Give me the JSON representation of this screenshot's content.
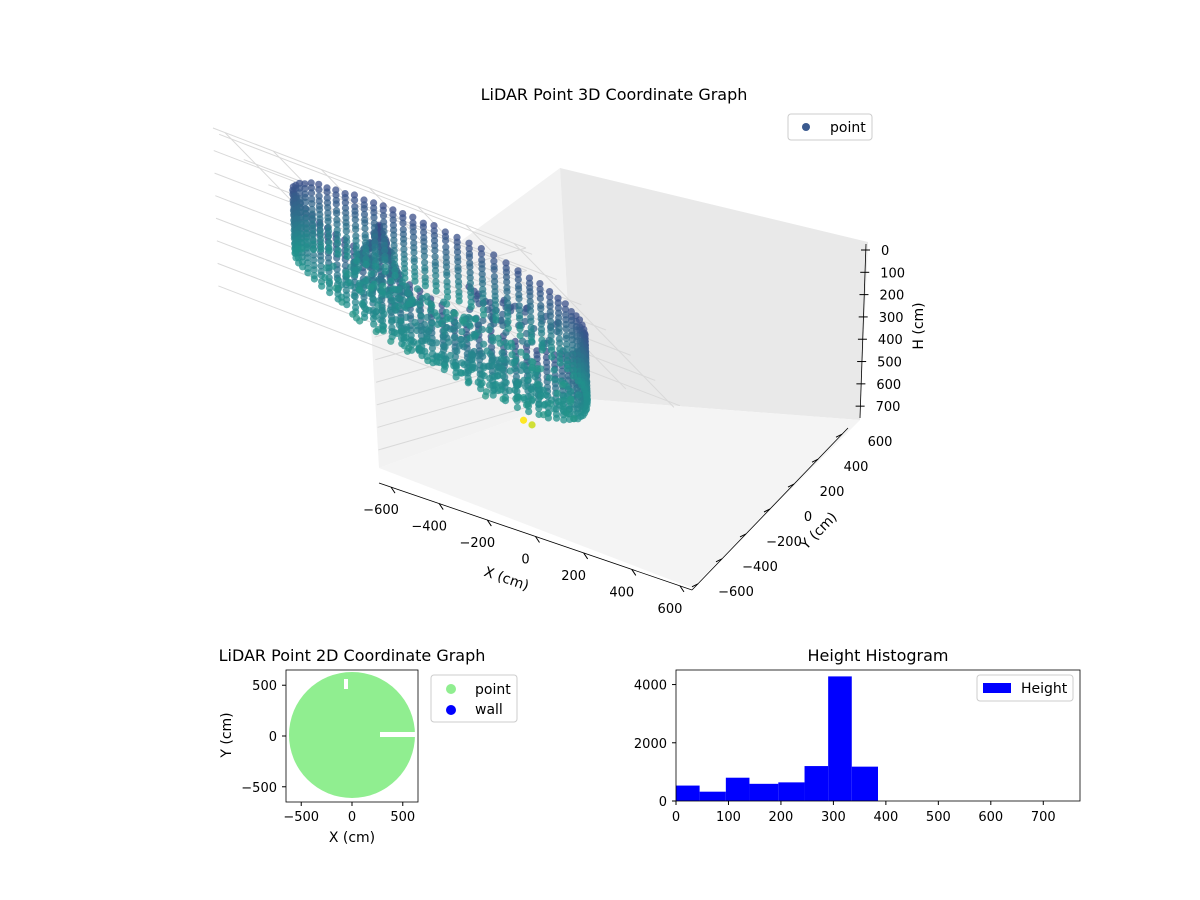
{
  "colors": {
    "point_3d": "#3b5a8f",
    "point_2d": "#90ee90",
    "wall": "#0000ff",
    "hist": "#0000ff"
  },
  "chart_data": [
    {
      "type": "scatter",
      "title": "LiDAR Point 3D Coordinate Graph",
      "xlabel": "X (cm)",
      "ylabel": "Y (cm)",
      "zlabel": "H (cm)",
      "xlim": [
        -650,
        650
      ],
      "ylim": [
        -650,
        650
      ],
      "zlim": [
        780,
        0
      ],
      "x_ticks": [
        "−600",
        "−400",
        "−200",
        "0",
        "200",
        "400",
        "600"
      ],
      "y_ticks": [
        "−600",
        "−400",
        "−200",
        "0",
        "200",
        "400",
        "600"
      ],
      "z_ticks": [
        "0",
        "100",
        "200",
        "300",
        "400",
        "500",
        "600",
        "700"
      ],
      "legend": [
        "point"
      ],
      "legend_position": "top-right",
      "colormap": "viridis (by height)",
      "description": "Ring-shaped wall of points about 500–600 cm radius, heights 0–780 cm; dense interior cone near the center and a sparse interior wall segment",
      "outliers": [
        {
          "x": 560,
          "y": 470,
          "h": 720
        },
        {
          "x": 590,
          "y": 600,
          "h": 760
        }
      ]
    },
    {
      "type": "scatter",
      "title": "LiDAR Point 2D Coordinate Graph",
      "xlabel": "X (cm)",
      "ylabel": "Y (cm)",
      "xlim": [
        -650,
        650
      ],
      "ylim": [
        -650,
        650
      ],
      "x_ticks": [
        "−500",
        "0",
        "500"
      ],
      "y_ticks": [
        "500",
        "0",
        "−500"
      ],
      "legend": [
        "point",
        "wall"
      ],
      "legend_position": "outside right",
      "description": "Filled disc of points radius ~620 cm centered at origin, with a small gap near x≈300..620, y≈0"
    },
    {
      "type": "bar",
      "title": "Height Histogram",
      "legend": [
        "Height"
      ],
      "legend_position": "top-right",
      "xlim": [
        0,
        770
      ],
      "ylim": [
        0,
        4500
      ],
      "x_ticks": [
        "0",
        "100",
        "200",
        "300",
        "400",
        "500",
        "600",
        "700"
      ],
      "y_ticks": [
        "0",
        "2000",
        "4000"
      ],
      "bin_edges": [
        0,
        45,
        95,
        140,
        195,
        245,
        290,
        335,
        385
      ],
      "values": [
        530,
        320,
        800,
        590,
        640,
        1200,
        4280,
        1180
      ]
    }
  ]
}
